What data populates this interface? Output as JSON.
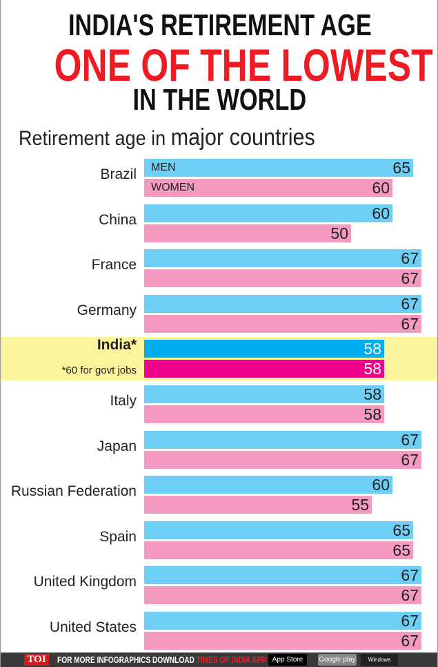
{
  "header": {
    "line1": "INDIA'S RETIREMENT AGE",
    "line2": "ONE OF THE LOWEST",
    "line3": "IN THE WORLD",
    "subtitle_a": "Retirement age in ",
    "subtitle_b": "major countries"
  },
  "colors": {
    "men": "#6ecff6",
    "women": "#f49ac1",
    "men_highlight": "#00aeef",
    "women_highlight": "#ec008c",
    "highlight_band": "#fbf49c",
    "title_red": "#ed1c24"
  },
  "chart_data": {
    "type": "bar",
    "orientation": "horizontal",
    "title": "Retirement age in major countries",
    "series_labels": {
      "men": "MEN",
      "women": "WOMEN"
    },
    "categories": [
      "Brazil",
      "China",
      "France",
      "Germany",
      "India*",
      "Italy",
      "Japan",
      "Russian Federation",
      "Spain",
      "United Kingdom",
      "United States"
    ],
    "series": [
      {
        "name": "MEN",
        "values": [
          65,
          60,
          67,
          67,
          58,
          58,
          67,
          60,
          65,
          67,
          67
        ]
      },
      {
        "name": "WOMEN",
        "values": [
          60,
          50,
          67,
          67,
          58,
          58,
          67,
          55,
          65,
          67,
          67
        ]
      }
    ],
    "highlight": "India*",
    "highlight_note": "*60 for govt jobs"
  },
  "footer": {
    "brand": "TOI",
    "text_a": "FOR MORE  INFOGRAPHICS DOWNLOAD ",
    "text_b": "TIMES OF INDIA  APP",
    "app_store": "App Store",
    "google_play": "Google play",
    "windows": "Windows Phone"
  }
}
